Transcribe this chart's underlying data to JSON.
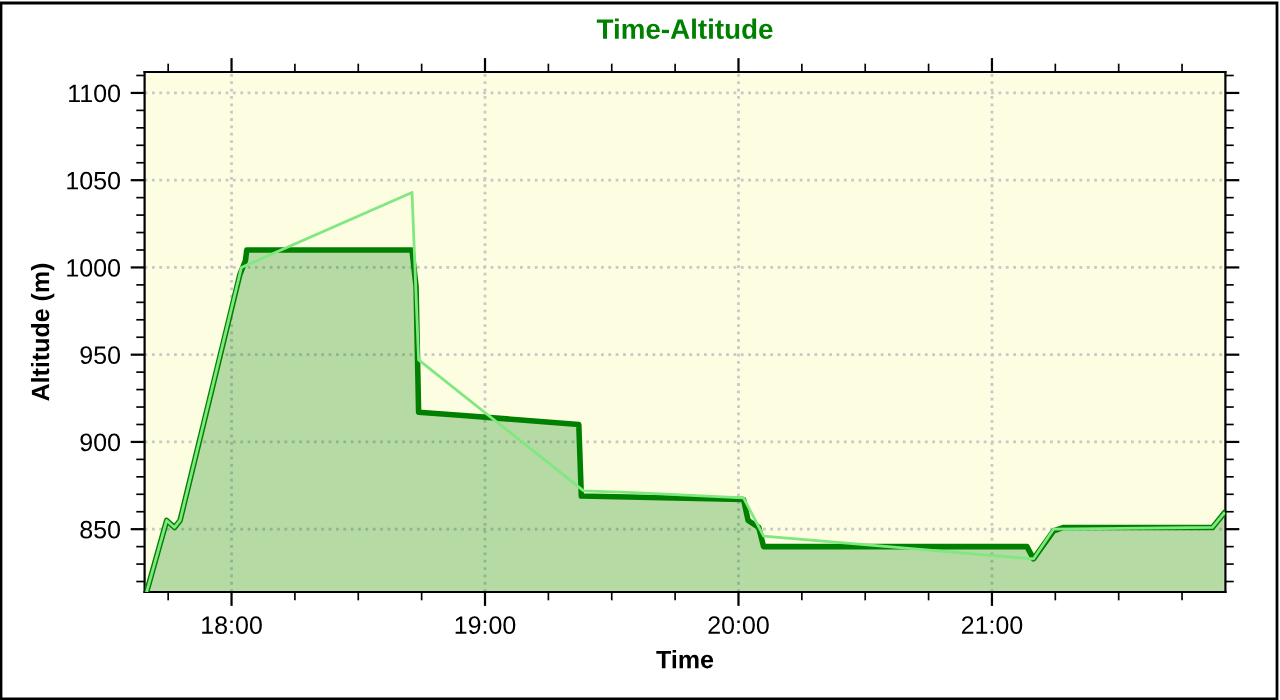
{
  "chart_data": {
    "type": "area",
    "title": "Time-Altitude",
    "xlabel": "Time",
    "ylabel": "Altitude (m)",
    "xlim": [
      17.657,
      21.921
    ],
    "ylim": [
      814,
      1112
    ],
    "xticks": [
      {
        "value": 18,
        "label": "18:00"
      },
      {
        "value": 19,
        "label": "19:00"
      },
      {
        "value": 20,
        "label": "20:00"
      },
      {
        "value": 21,
        "label": "21:00"
      }
    ],
    "yticks": [
      850,
      900,
      950,
      1000,
      1050,
      1100
    ],
    "grid": true,
    "legend": false,
    "series": [
      {
        "color": "#008000",
        "x": [
          17.665,
          17.744,
          17.775,
          17.797,
          18.033,
          18.055,
          18.06,
          18.712,
          18.728,
          18.738,
          18.927,
          19.37,
          19.38,
          20.02,
          20.038,
          20.08,
          20.099,
          21.138,
          21.164,
          21.243,
          21.283,
          21.87,
          21.915
        ],
        "values": [
          814,
          855,
          851,
          855,
          996,
          1004,
          1010,
          1010,
          989,
          917,
          915,
          910,
          869,
          867,
          855,
          851,
          840,
          840,
          833,
          849,
          851,
          851,
          859
        ]
      },
      {
        "type": "line",
        "color": "#80e880",
        "x": [
          17.665,
          17.744,
          17.775,
          17.797,
          18.039,
          18.712,
          18.738,
          19.389,
          19.586,
          20.02,
          20.099,
          21.164,
          21.243,
          21.87,
          21.915
        ],
        "values": [
          814,
          855,
          851,
          855,
          1000,
          1043,
          947,
          872,
          871,
          868,
          846,
          833,
          850,
          851,
          859
        ]
      }
    ]
  }
}
